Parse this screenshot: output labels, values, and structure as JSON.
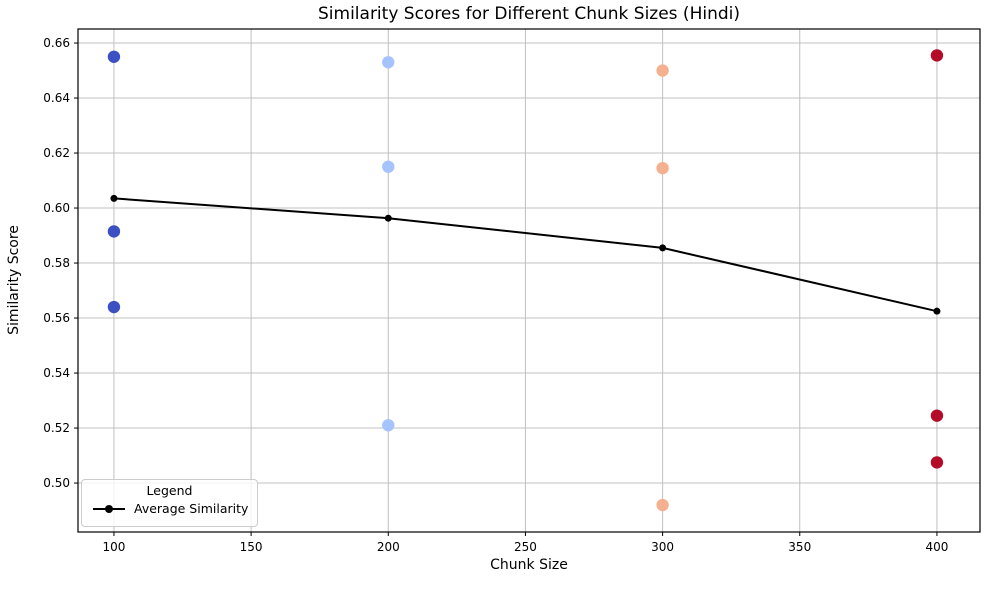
{
  "chart": {
    "title": "Similarity Scores for Different Chunk Sizes (Hindi)",
    "xlabel": "Chunk Size",
    "ylabel": "Similarity Score",
    "legend": {
      "title": "Legend",
      "entries": [
        {
          "label": "Average Similarity",
          "marker": "line-dot",
          "color": "#000000"
        }
      ]
    }
  },
  "chart_data": {
    "type": "scatter",
    "title": "Similarity Scores for Different Chunk Sizes (Hindi)",
    "xlabel": "Chunk Size",
    "ylabel": "Similarity Score",
    "grid": true,
    "legend_position": "lower left",
    "xlim": [
      86.9,
      415.7
    ],
    "ylim": [
      0.4822,
      0.6651
    ],
    "x_ticks": [
      100,
      150,
      200,
      250,
      300,
      350,
      400
    ],
    "y_ticks": [
      "0.66",
      "0.64",
      "0.62",
      "0.60",
      "0.58",
      "0.56",
      "0.54",
      "0.52",
      "0.50"
    ],
    "colors": {
      "grid": "#c0c0c0",
      "frame": "#000000",
      "average_line": "#000000"
    },
    "scatter_series": [
      {
        "name": "chunk-100",
        "x": 100,
        "color": "#3d50c3",
        "values": [
          0.655,
          0.5915,
          0.564
        ]
      },
      {
        "name": "chunk-200",
        "x": 200,
        "color": "#a5c3fe",
        "values": [
          0.653,
          0.615,
          0.521
        ]
      },
      {
        "name": "chunk-300",
        "x": 300,
        "color": "#f5b090",
        "values": [
          0.65,
          0.6145,
          0.492
        ]
      },
      {
        "name": "chunk-400",
        "x": 400,
        "color": "#b40b28",
        "values": [
          0.6555,
          0.5245,
          0.5075
        ]
      }
    ],
    "line_series": [
      {
        "name": "Average Similarity",
        "color": "#000000",
        "x": [
          100,
          200,
          300,
          400
        ],
        "y": [
          0.6035,
          0.5963,
          0.5855,
          0.5625
        ]
      }
    ]
  }
}
